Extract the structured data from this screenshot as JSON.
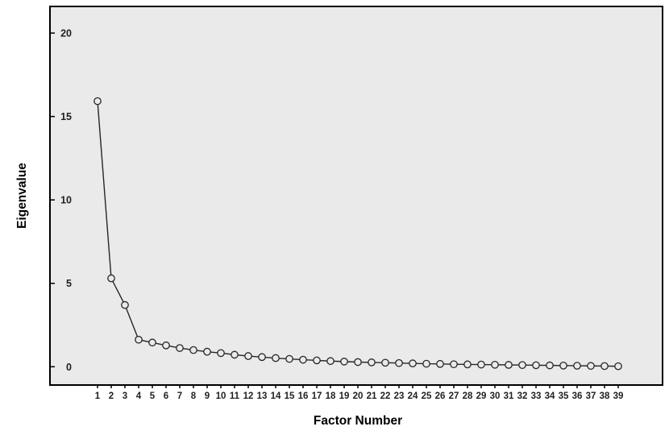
{
  "chart_data": {
    "type": "line",
    "title": "",
    "xlabel": "Factor Number",
    "ylabel": "Eigenvalue",
    "x": [
      1,
      2,
      3,
      4,
      5,
      6,
      7,
      8,
      9,
      10,
      11,
      12,
      13,
      14,
      15,
      16,
      17,
      18,
      19,
      20,
      21,
      22,
      23,
      24,
      25,
      26,
      27,
      28,
      29,
      30,
      31,
      32,
      33,
      34,
      35,
      36,
      37,
      38,
      39
    ],
    "values": [
      15.92,
      5.3,
      3.7,
      1.62,
      1.45,
      1.28,
      1.12,
      1.0,
      0.9,
      0.82,
      0.72,
      0.64,
      0.58,
      0.52,
      0.47,
      0.42,
      0.38,
      0.34,
      0.31,
      0.28,
      0.26,
      0.24,
      0.22,
      0.2,
      0.18,
      0.17,
      0.15,
      0.14,
      0.13,
      0.12,
      0.11,
      0.1,
      0.09,
      0.08,
      0.07,
      0.06,
      0.05,
      0.04,
      0.03
    ],
    "y_ticks": [
      0,
      5,
      10,
      15,
      20
    ],
    "ylim": [
      -1,
      21.5
    ],
    "grid": false,
    "legend": "none",
    "marker": "open-circle",
    "series_name": "Eigenvalues",
    "colors": {
      "line": "#262626",
      "marker_stroke": "#262626",
      "panel": "#EAEAEA",
      "frame": "#000000",
      "text": "#000000"
    }
  }
}
